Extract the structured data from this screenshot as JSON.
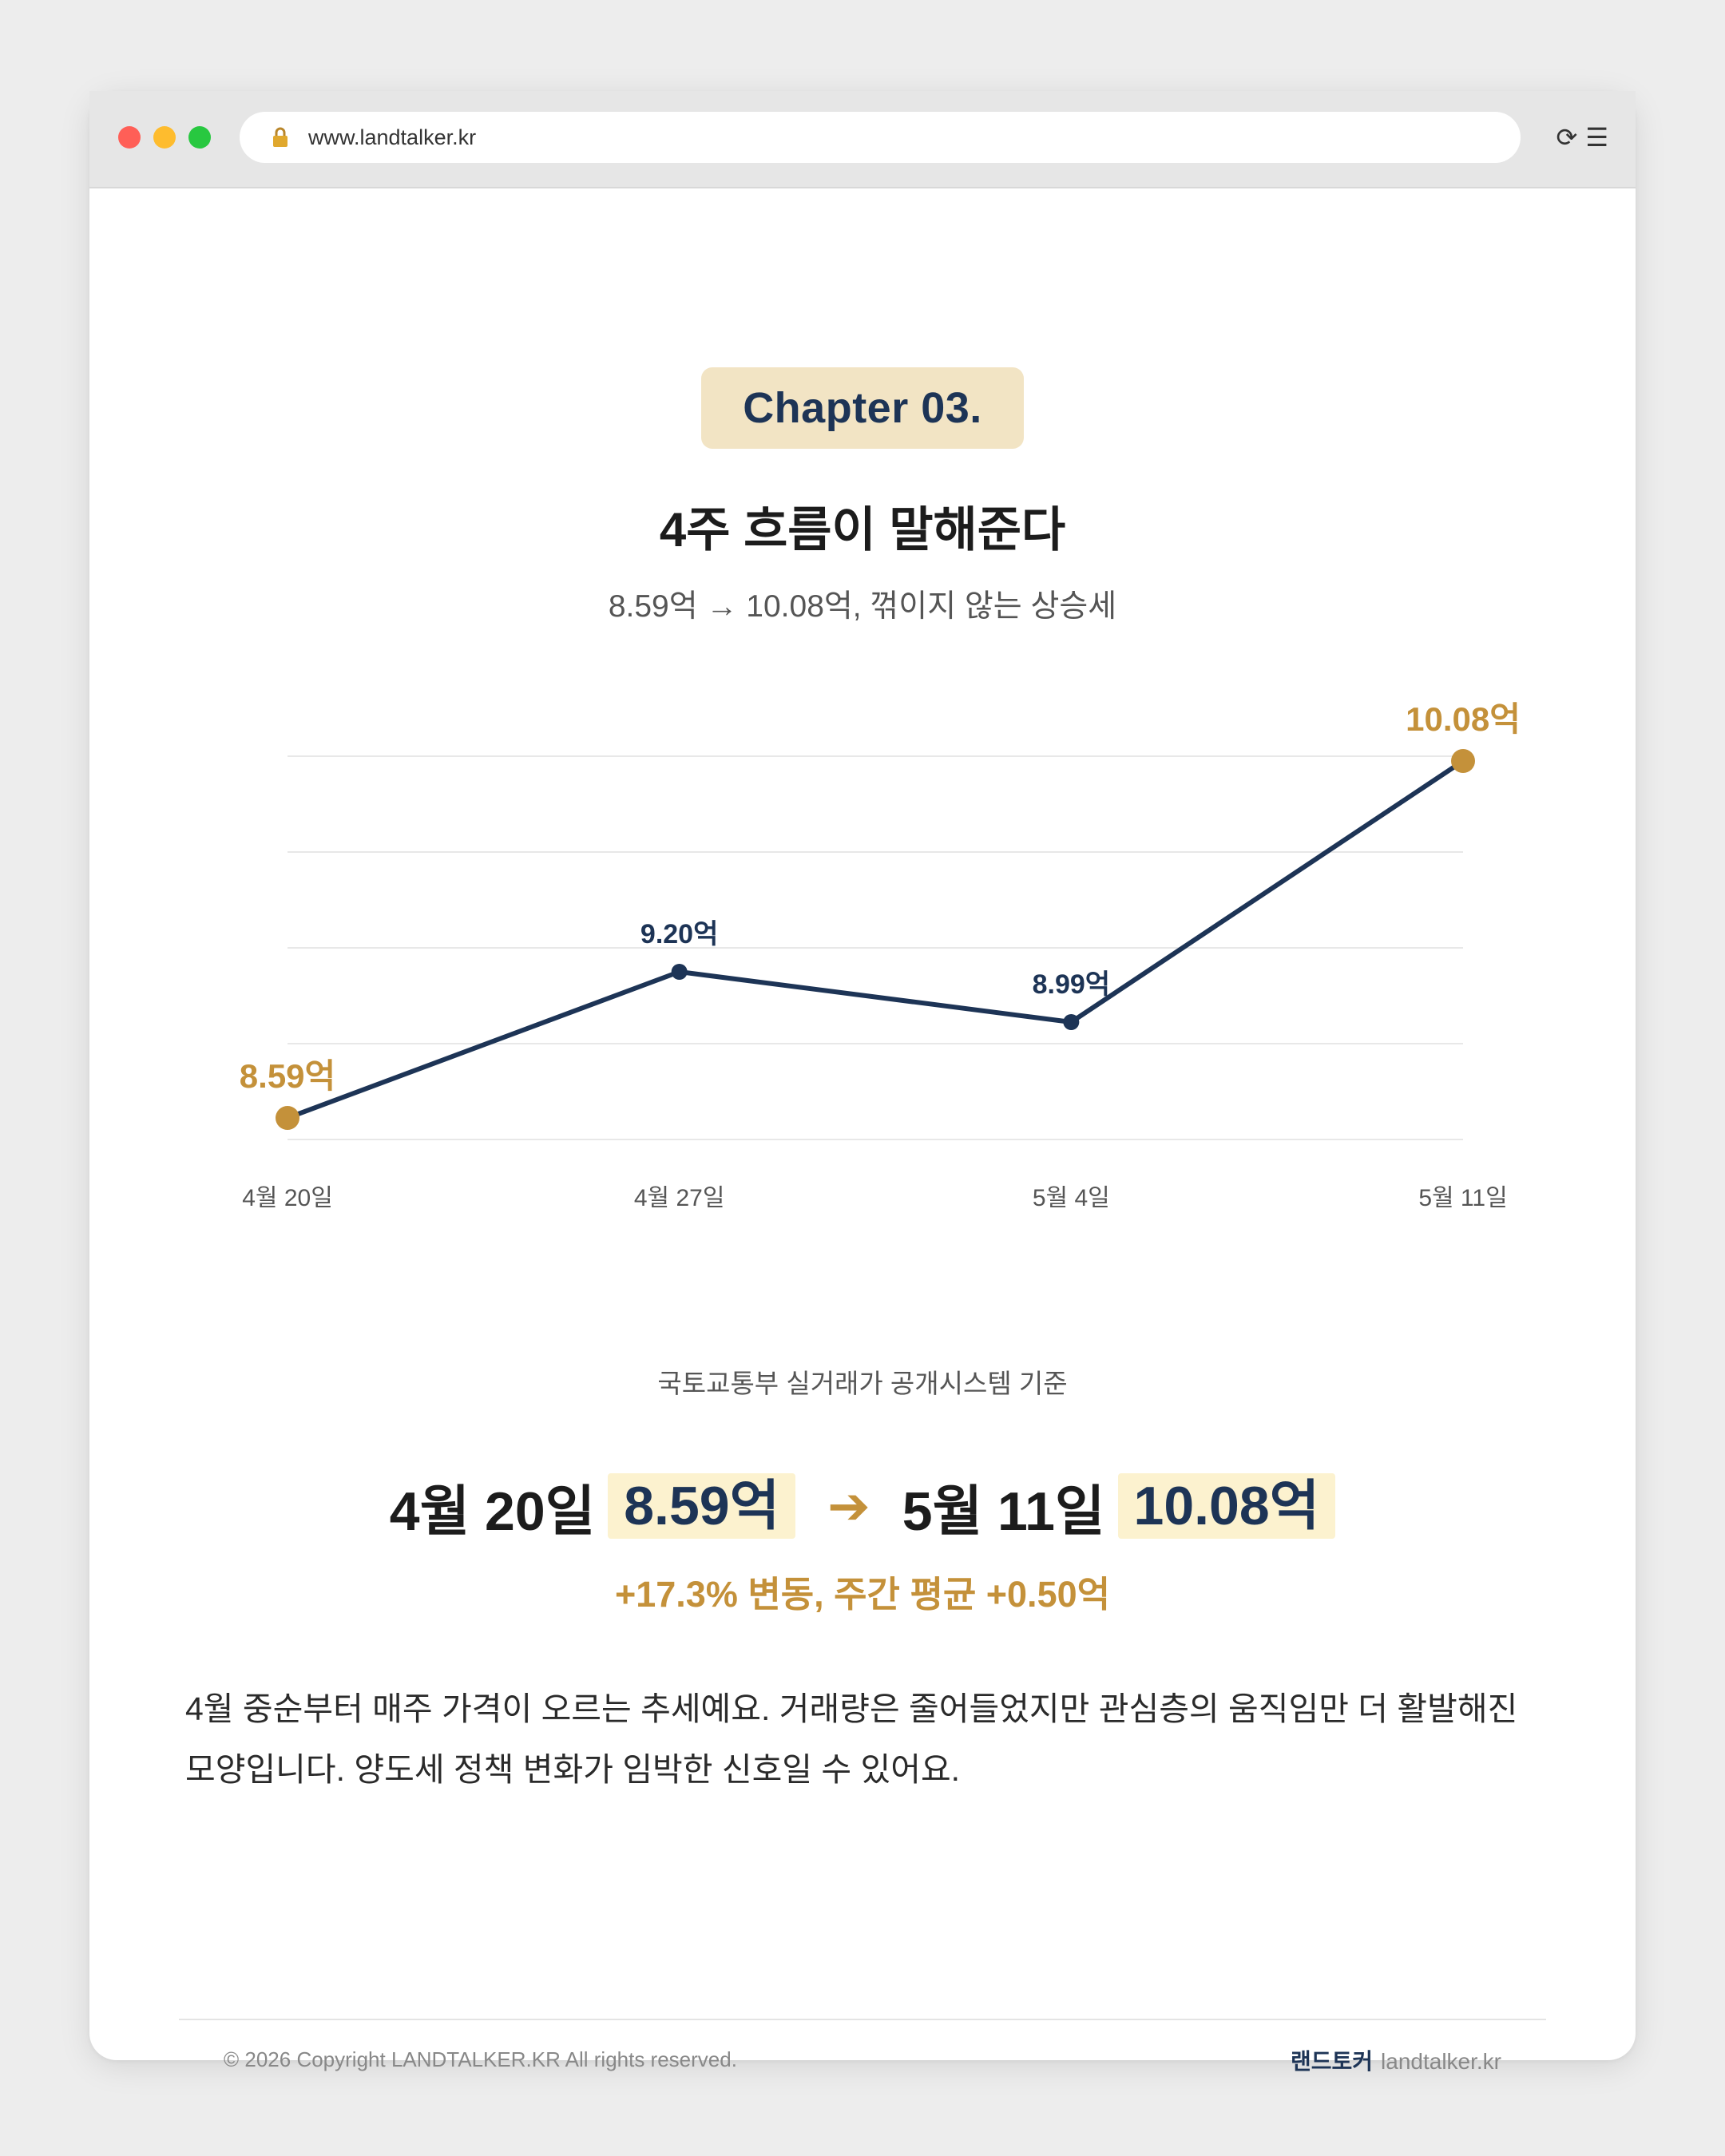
{
  "browser": {
    "url": "www.landtalker.kr",
    "reload_icon": "reload-icon",
    "menu_icon": "hamburger-menu-icon",
    "lock_icon": "lock-icon",
    "reload_glyph": "⟳",
    "menu_glyph": "☰"
  },
  "header": {
    "chapter": "Chapter 03.",
    "title": "4주 흐름이 말해준다",
    "subtitle": "8.59억 → 10.08억, 꺾이지 않는 상승세"
  },
  "chart_data": {
    "type": "line",
    "categories": [
      "4월 20일",
      "4월 27일",
      "5월 4일",
      "5월 11일"
    ],
    "series": [
      {
        "values": [
          8.59,
          9.2,
          8.99,
          10.08
        ],
        "labels": [
          "8.59억",
          "9.20억",
          "8.99억",
          "10.08억"
        ]
      }
    ],
    "ylim": [
      8.5,
      10.1
    ],
    "grid": true,
    "colors": {
      "line": "#1d3456",
      "highlight": "#c4913a",
      "grid": "#e8e8e8"
    }
  },
  "source": "국토교통부 실거래가 공개시스템 기준",
  "summary": {
    "start_date": "4월 20일",
    "start_value": "8.59억",
    "arrow": "➔",
    "end_date": "5월 11일",
    "end_value": "10.08억",
    "change": "+17.3% 변동, 주간 평균 +0.50억"
  },
  "body": "4월 중순부터 매주 가격이 오르는 추세예요. 거래량은 줄어들었지만 관심층의 움직임만 더 활발해진 모양입니다. 양도세 정책 변화가 임박한 신호일 수 있어요.",
  "footer": {
    "copyright": "© 2026 Copyright LANDTALKER.KR All rights reserved.",
    "brand_kr": "랜드토커",
    "brand_url": "landtalker.kr"
  }
}
